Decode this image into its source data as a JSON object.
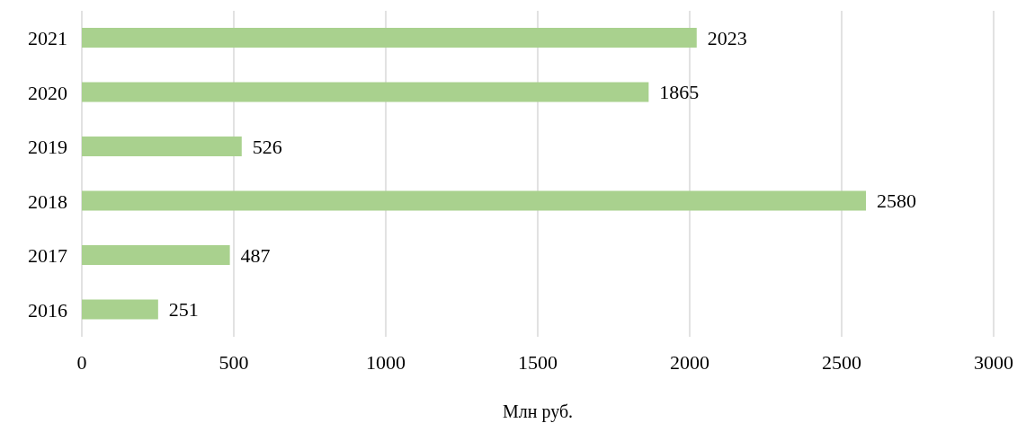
{
  "chart_data": {
    "type": "bar",
    "orientation": "horizontal",
    "xlabel": "Млн руб.",
    "categories": [
      "2021",
      "2020",
      "2019",
      "2018",
      "2017",
      "2016"
    ],
    "values": [
      2023,
      1865,
      526,
      2580,
      487,
      251
    ],
    "color": "#a9d18e",
    "xlim": [
      0,
      3000
    ],
    "xticks": [
      0,
      500,
      1000,
      1500,
      2000,
      2500,
      3000
    ],
    "grid": "x",
    "data_labels": true
  }
}
